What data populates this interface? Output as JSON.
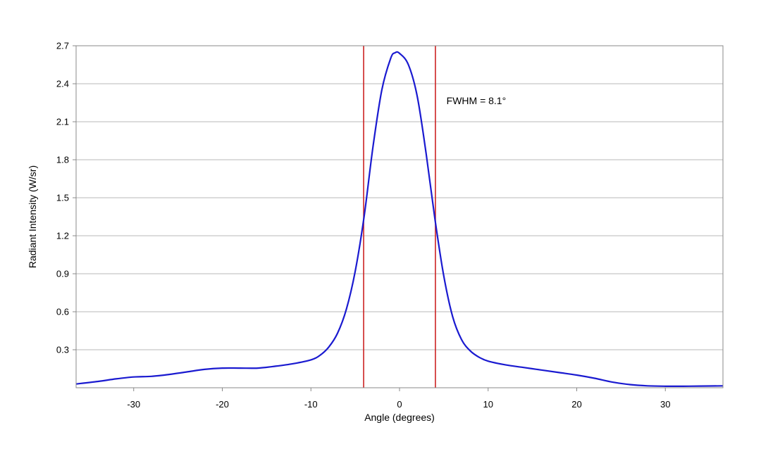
{
  "chart_data": {
    "type": "line",
    "title": "",
    "xlabel": "Angle (degrees)",
    "ylabel": "Radiant Intensity (W/sr)",
    "xlim": [
      -36.5,
      36.5
    ],
    "ylim": [
      0,
      2.7
    ],
    "xticks": [
      -30,
      -20,
      -10,
      0,
      10,
      20,
      30
    ],
    "yticks": [
      0.3,
      0.6,
      0.9,
      1.2,
      1.5,
      1.8,
      2.1,
      2.4,
      2.7
    ],
    "xtick_labels": [
      "-30",
      "-20",
      "-10",
      "0",
      "10",
      "20",
      "30"
    ],
    "ytick_labels": [
      "0.3",
      "0.6",
      "0.9",
      "1.2",
      "1.5",
      "1.8",
      "2.1",
      "2.4",
      "2.7"
    ],
    "grid": "horizontal",
    "legend": "none",
    "series": [
      {
        "color": "#1a1ad0",
        "x": [
          -36.5,
          -34,
          -32,
          -30,
          -28,
          -26,
          -24,
          -22,
          -20,
          -18,
          -16,
          -14,
          -12,
          -10,
          -9,
          -8,
          -7,
          -6,
          -5,
          -4,
          -3,
          -2,
          -1,
          -0.5,
          0,
          1,
          2,
          3,
          4,
          5,
          6,
          7,
          8,
          9,
          10,
          12,
          14,
          16,
          18,
          20,
          22,
          24,
          26,
          28,
          30,
          32,
          34,
          36.5
        ],
        "y": [
          0.03,
          0.05,
          0.07,
          0.085,
          0.09,
          0.105,
          0.125,
          0.145,
          0.155,
          0.155,
          0.155,
          0.17,
          0.19,
          0.22,
          0.255,
          0.32,
          0.43,
          0.62,
          0.92,
          1.35,
          1.9,
          2.35,
          2.6,
          2.645,
          2.64,
          2.55,
          2.3,
          1.85,
          1.33,
          0.88,
          0.56,
          0.38,
          0.29,
          0.24,
          0.21,
          0.18,
          0.16,
          0.14,
          0.12,
          0.1,
          0.075,
          0.045,
          0.025,
          0.015,
          0.012,
          0.012,
          0.013,
          0.015
        ]
      }
    ],
    "vlines": [
      {
        "x": -4.05,
        "color": "#cc2222"
      },
      {
        "x": 4.05,
        "color": "#cc2222"
      }
    ],
    "annotations": [
      {
        "text": "FWHM = 8.1°",
        "x": 5.3,
        "y": 2.24
      }
    ]
  }
}
